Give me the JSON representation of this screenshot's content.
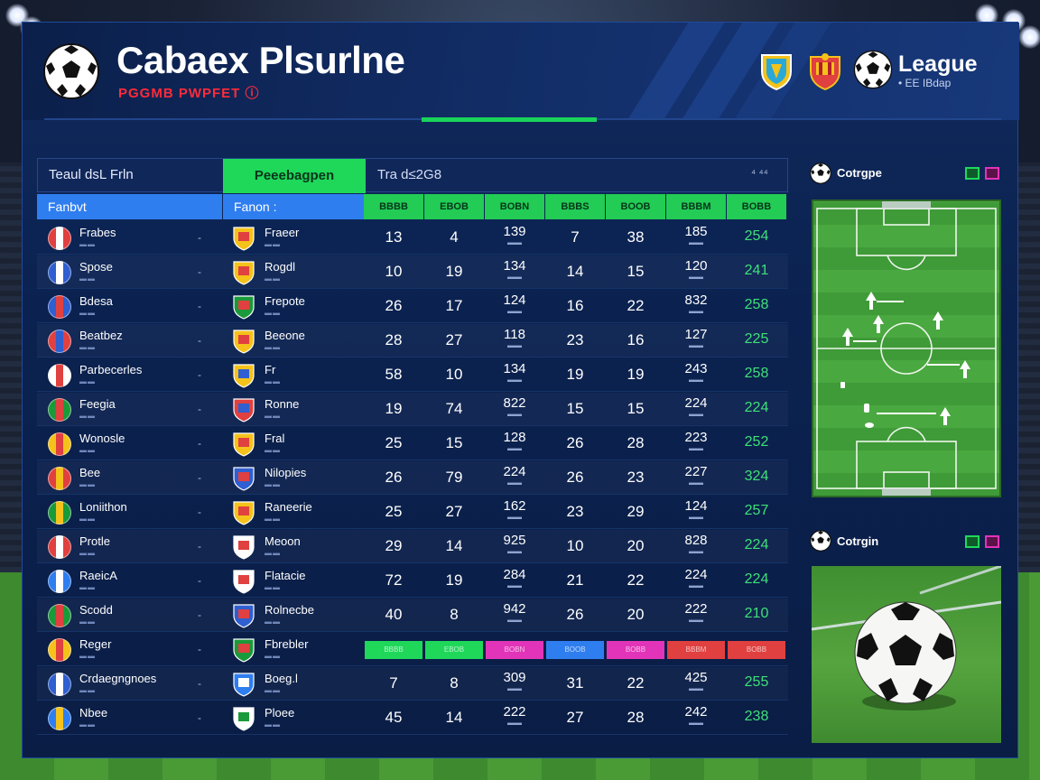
{
  "header": {
    "title": "Cabaex Plsurlne",
    "subtitle": "PGGMB PWPFET ⓘ",
    "league_name": "League",
    "league_sub": "• EE IBdap"
  },
  "toolbar": {
    "left_label": "Teaul dsL Frln",
    "active_tab": "Peeebagpen",
    "right_label": "Tra d≤2G8",
    "icons_label": "⁴ ⁴⁴"
  },
  "columns": {
    "team": "Fanbvt",
    "form": "Fanon :",
    "stats": [
      "BBBB",
      "EBOB",
      "BOBN",
      "BBBS",
      "BOOB",
      "BBBM",
      "BOBB"
    ]
  },
  "rows": [
    {
      "team": "Frabes",
      "form": "Fraeer",
      "v": [
        "13",
        "4",
        "139",
        "7",
        "38",
        "185",
        "254"
      ]
    },
    {
      "team": "Spose",
      "form": "Rogdl",
      "v": [
        "10",
        "19",
        "134",
        "14",
        "15",
        "120",
        "241"
      ]
    },
    {
      "team": "Bdesa",
      "form": "Frepote",
      "v": [
        "26",
        "17",
        "124",
        "16",
        "22",
        "832",
        "258"
      ]
    },
    {
      "team": "Beatbez",
      "form": "Beeone",
      "v": [
        "28",
        "27",
        "118",
        "23",
        "16",
        "127",
        "225"
      ]
    },
    {
      "team": "Parbecerles",
      "form": "Fr",
      "v": [
        "58",
        "10",
        "134",
        "19",
        "19",
        "243",
        "258"
      ]
    },
    {
      "team": "Feegia",
      "form": "Ronne",
      "v": [
        "19",
        "74",
        "822",
        "15",
        "15",
        "224",
        "224"
      ]
    },
    {
      "team": "Wonosle",
      "form": "Fral",
      "v": [
        "25",
        "15",
        "128",
        "26",
        "28",
        "223",
        "252"
      ]
    },
    {
      "team": "Bee",
      "form": "Nilopies",
      "v": [
        "26",
        "79",
        "224",
        "26",
        "23",
        "227",
        "324"
      ]
    },
    {
      "team": "Loniithon",
      "form": "Raneerie",
      "v": [
        "25",
        "27",
        "162",
        "23",
        "29",
        "124",
        "257"
      ]
    },
    {
      "team": "Protle",
      "form": "Meoon",
      "v": [
        "29",
        "14",
        "925",
        "10",
        "20",
        "828",
        "224"
      ]
    },
    {
      "team": "RaeicA",
      "form": "Flatacie",
      "v": [
        "72",
        "19",
        "284",
        "21",
        "22",
        "224",
        "224"
      ]
    },
    {
      "team": "Scodd",
      "form": "Rolnecbe",
      "v": [
        "40",
        "8",
        "942",
        "26",
        "20",
        "222",
        "210"
      ]
    },
    {
      "team": "Reger",
      "form": "Fbrebler",
      "v": null
    },
    {
      "team": "Crdaegngnoes",
      "form": "Boeg.l",
      "v": [
        "7",
        "8",
        "309",
        "31",
        "22",
        "425",
        "255"
      ]
    },
    {
      "team": "Nbee",
      "form": "Ploee",
      "v": [
        "45",
        "14",
        "222",
        "27",
        "28",
        "242",
        "238"
      ]
    }
  ],
  "chips": [
    "BBBB",
    "EBOB",
    "BOBN",
    "BOOB",
    "BOBB",
    "BBBM",
    "BOBB"
  ],
  "chip_colors": [
    "#1fd85a",
    "#1fd85a",
    "#e234b8",
    "#2f7ef0",
    "#e234b8",
    "#e0403f",
    "#e0403f"
  ],
  "side": {
    "formation_title": "Cotrgpe",
    "photo_title": "Cotrgin"
  }
}
